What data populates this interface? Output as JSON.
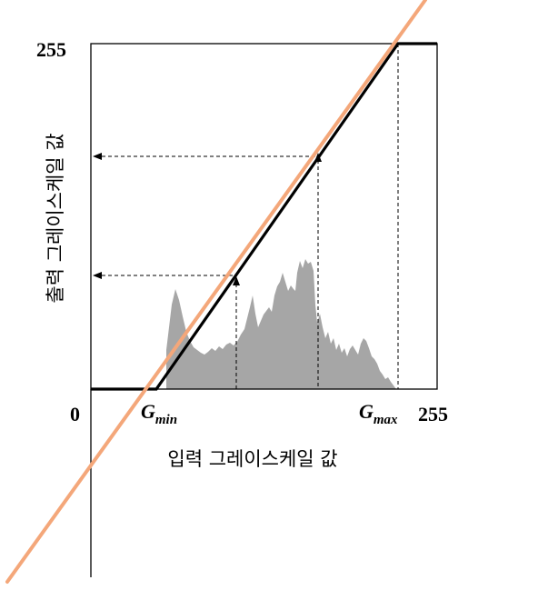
{
  "diagram": {
    "axis_labels": {
      "y_max": "255",
      "x_origin": "0",
      "x_max": "255",
      "g_min_main": "G",
      "g_min_sub": "min",
      "g_max_main": "G",
      "g_max_sub": "max",
      "x_title": "입력 그레이스케일 값",
      "y_title": "출력 그레이스케일 값"
    },
    "colors": {
      "histogram": "#a6a6a6",
      "mapping_line": "#000000",
      "stretch_line": "#f4a77a",
      "frame": "#000000"
    }
  }
}
